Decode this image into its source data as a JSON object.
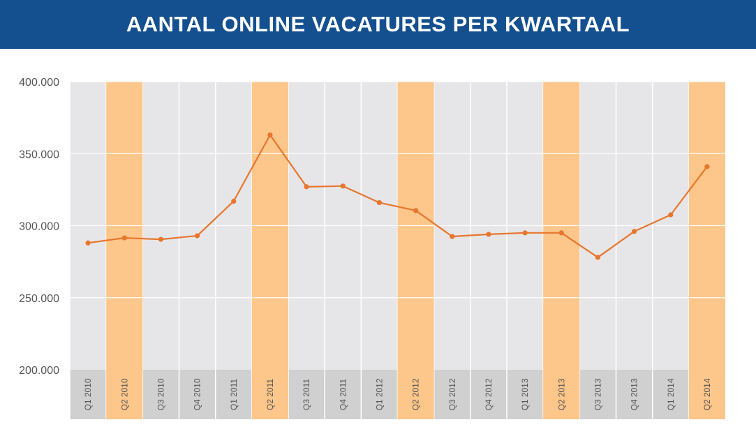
{
  "header": {
    "title": "AANTAL ONLINE VACATURES PER KWARTAAL"
  },
  "colors": {
    "header_bg": "#14508f",
    "column_gray": "#e6e6e8",
    "column_highlight": "#fdc68a",
    "label_band_gray": "#d0d0d0",
    "line": "#e8762d",
    "gridline": "#ffffff"
  },
  "chart_data": {
    "type": "line",
    "title": "AANTAL ONLINE VACATURES PER KWARTAAL",
    "xlabel": "",
    "ylabel": "",
    "categories": [
      "Q1 2010",
      "Q2 2010",
      "Q3 2010",
      "Q4 2010",
      "Q1 2011",
      "Q2 2011",
      "Q3 2011",
      "Q4 2011",
      "Q1 2012",
      "Q2 2012",
      "Q3 2012",
      "Q4 2012",
      "Q1 2013",
      "Q2 2013",
      "Q3 2013",
      "Q4 2013",
      "Q1 2014",
      "Q2 2014"
    ],
    "series": [
      {
        "values": [
          288000,
          291500,
          290500,
          293000,
          317000,
          363000,
          327000,
          327500,
          316000,
          310500,
          292500,
          294000,
          295000,
          295000,
          278000,
          296000,
          307500,
          341000
        ]
      }
    ],
    "highlighted_categories": [
      "Q2 2010",
      "Q2 2011",
      "Q2 2012",
      "Q2 2013",
      "Q2 2014"
    ],
    "ylim": [
      200000,
      400000
    ],
    "yticks": [
      200000,
      250000,
      300000,
      350000,
      400000
    ],
    "ytick_labels": [
      "200.000",
      "250.000",
      "300.000",
      "350.000",
      "400.000"
    ],
    "grid": true,
    "legend": "none"
  }
}
